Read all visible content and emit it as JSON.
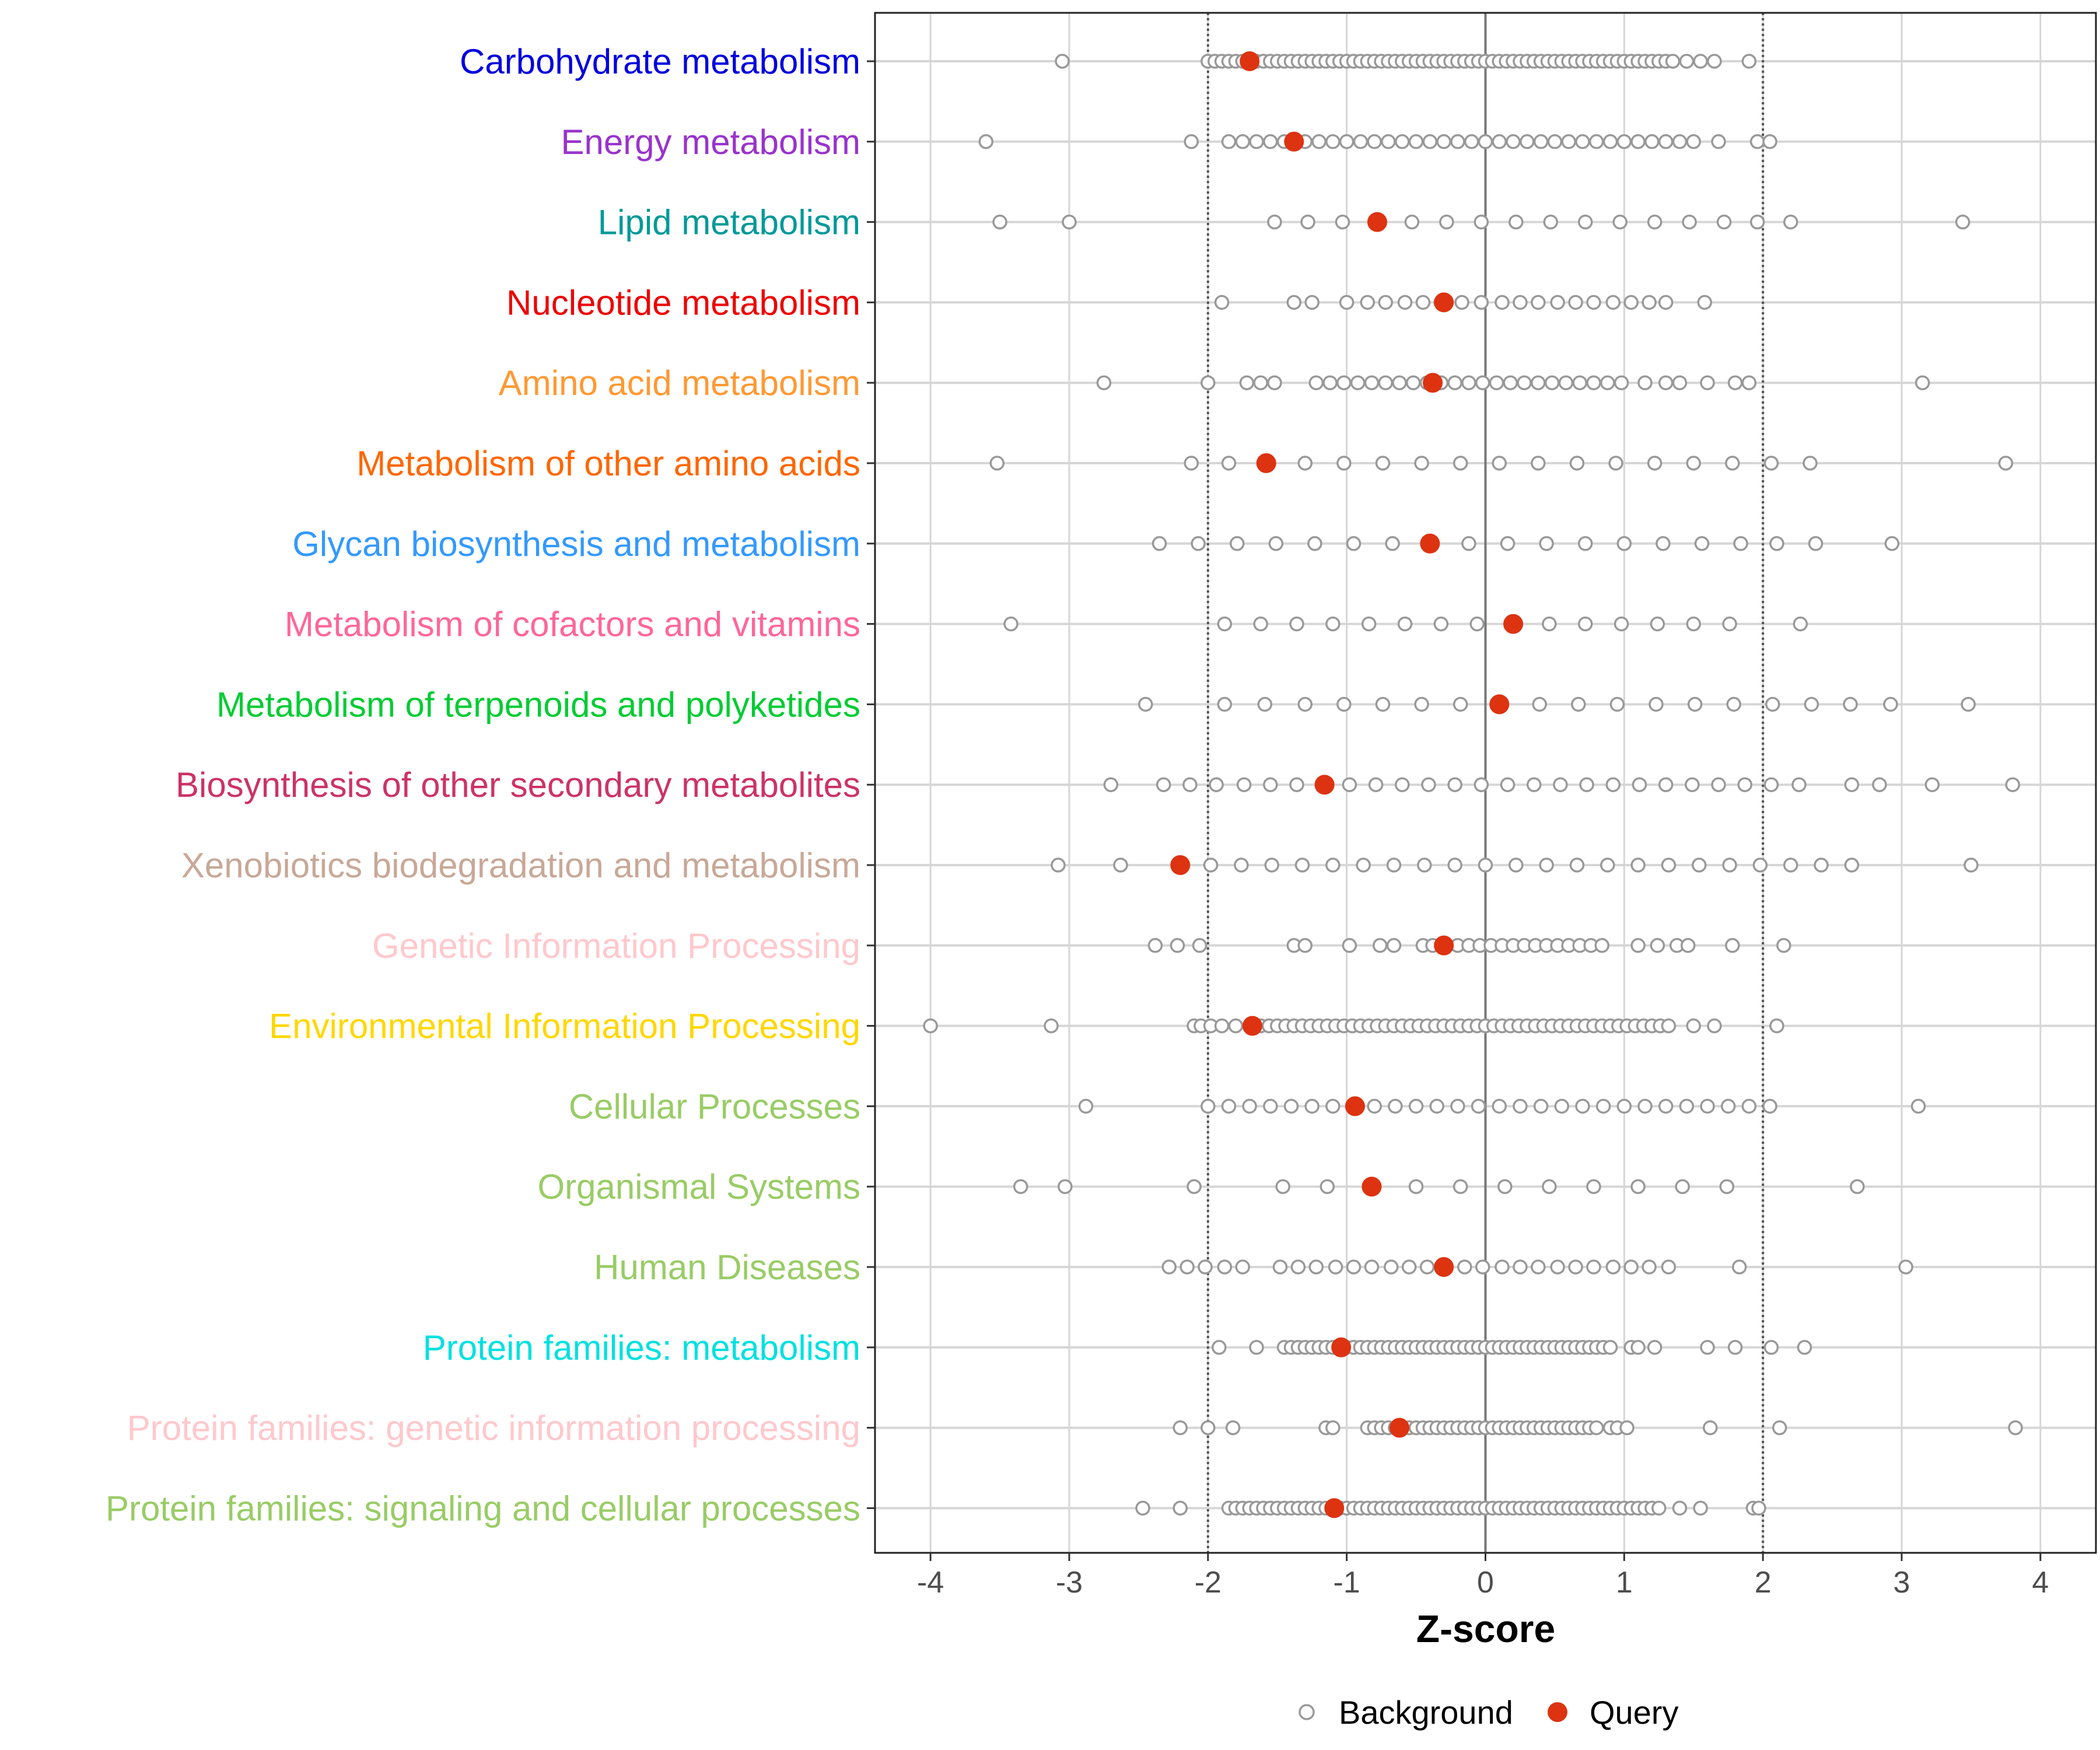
{
  "chart_data": {
    "type": "scatter",
    "xlabel": "Z-score",
    "xlim": [
      -4.4,
      4.4
    ],
    "x_ticks": [
      -4,
      -3,
      -2,
      -1,
      0,
      1,
      2,
      3,
      4
    ],
    "x_tick_labels": [
      "-4",
      "-3",
      "-2",
      "-1",
      "0",
      "1",
      "2",
      "3",
      "4"
    ],
    "threshold_lines": [
      -2,
      2
    ],
    "zero_line": 0,
    "legend": {
      "position": "bottom",
      "entries": [
        {
          "name": "Background",
          "style": "hollow",
          "color": "#9a9a9a"
        },
        {
          "name": "Query",
          "style": "filled",
          "color": "#dd3311"
        }
      ]
    },
    "categories": [
      {
        "label": "Carbohydrate metabolism",
        "color": "#0000dd",
        "query": -1.7,
        "background": [
          -3.05,
          -2.0,
          -1.95,
          -1.9,
          -1.85,
          -1.8,
          -1.75,
          -1.65,
          -1.6,
          -1.55,
          -1.5,
          -1.45,
          -1.4,
          -1.35,
          -1.3,
          -1.25,
          -1.2,
          -1.15,
          -1.1,
          -1.05,
          -1.0,
          -0.95,
          -0.9,
          -0.85,
          -0.8,
          -0.75,
          -0.7,
          -0.65,
          -0.6,
          -0.55,
          -0.5,
          -0.45,
          -0.4,
          -0.35,
          -0.3,
          -0.25,
          -0.2,
          -0.15,
          -0.1,
          -0.05,
          0.0,
          0.05,
          0.1,
          0.15,
          0.2,
          0.25,
          0.3,
          0.35,
          0.4,
          0.45,
          0.5,
          0.55,
          0.6,
          0.65,
          0.7,
          0.75,
          0.8,
          0.85,
          0.9,
          0.95,
          1.0,
          1.05,
          1.1,
          1.15,
          1.2,
          1.25,
          1.3,
          1.35,
          1.45,
          1.55,
          1.65,
          1.9
        ]
      },
      {
        "label": "Energy metabolism",
        "color": "#9933cc",
        "query": -1.38,
        "background": [
          -3.6,
          -2.12,
          -1.85,
          -1.75,
          -1.65,
          -1.55,
          -1.45,
          -1.3,
          -1.2,
          -1.1,
          -1.0,
          -0.9,
          -0.8,
          -0.7,
          -0.6,
          -0.5,
          -0.4,
          -0.3,
          -0.2,
          -0.1,
          0.0,
          0.1,
          0.2,
          0.3,
          0.4,
          0.5,
          0.6,
          0.7,
          0.8,
          0.9,
          1.0,
          1.1,
          1.2,
          1.3,
          1.4,
          1.5,
          1.68,
          1.96,
          2.05
        ]
      },
      {
        "label": "Lipid metabolism",
        "color": "#009999",
        "query": -0.78,
        "background": [
          -3.5,
          -3.0,
          -1.52,
          -1.28,
          -1.03,
          -0.53,
          -0.28,
          -0.03,
          0.22,
          0.47,
          0.72,
          0.97,
          1.22,
          1.47,
          1.72,
          1.96,
          2.2,
          3.44
        ]
      },
      {
        "label": "Nucleotide metabolism",
        "color": "#ee0000",
        "query": -0.3,
        "background": [
          -1.9,
          -1.38,
          -1.25,
          -1.0,
          -0.85,
          -0.72,
          -0.58,
          -0.45,
          -0.32,
          -0.17,
          -0.03,
          0.12,
          0.25,
          0.38,
          0.52,
          0.65,
          0.78,
          0.92,
          1.05,
          1.18,
          1.3,
          1.58
        ]
      },
      {
        "label": "Amino acid metabolism",
        "color": "#ff9933",
        "query": -0.38,
        "background": [
          -2.75,
          -2.0,
          -1.72,
          -1.62,
          -1.52,
          -1.22,
          -1.12,
          -1.02,
          -0.92,
          -0.82,
          -0.72,
          -0.62,
          -0.52,
          -0.42,
          -0.32,
          -0.22,
          -0.12,
          -0.02,
          0.08,
          0.18,
          0.28,
          0.38,
          0.48,
          0.58,
          0.68,
          0.78,
          0.88,
          0.98,
          1.15,
          1.3,
          1.4,
          1.6,
          1.8,
          1.9,
          3.15
        ]
      },
      {
        "label": "Metabolism of other amino acids",
        "color": "#ff6600",
        "query": -1.58,
        "background": [
          -3.52,
          -2.12,
          -1.85,
          -1.3,
          -1.02,
          -0.74,
          -0.46,
          -0.18,
          0.1,
          0.38,
          0.66,
          0.94,
          1.22,
          1.5,
          1.78,
          2.06,
          2.34,
          3.75
        ]
      },
      {
        "label": "Glycan biosynthesis and metabolism",
        "color": "#3399ff",
        "query": -0.4,
        "background": [
          -2.35,
          -2.07,
          -1.79,
          -1.51,
          -1.23,
          -0.95,
          -0.67,
          -0.12,
          0.16,
          0.44,
          0.72,
          1.0,
          1.28,
          1.56,
          1.84,
          2.1,
          2.38,
          2.93
        ]
      },
      {
        "label": "Metabolism of cofactors and vitamins",
        "color": "#ff6699",
        "query": 0.2,
        "background": [
          -3.42,
          -1.88,
          -1.62,
          -1.36,
          -1.1,
          -0.84,
          -0.58,
          -0.32,
          -0.06,
          0.46,
          0.72,
          0.98,
          1.24,
          1.5,
          1.76,
          2.27
        ]
      },
      {
        "label": "Metabolism of terpenoids and polyketides",
        "color": "#00cc33",
        "query": 0.1,
        "background": [
          -2.45,
          -1.88,
          -1.59,
          -1.3,
          -1.02,
          -0.74,
          -0.46,
          -0.18,
          0.39,
          0.67,
          0.95,
          1.23,
          1.51,
          1.79,
          2.07,
          2.35,
          2.63,
          2.92,
          3.48
        ]
      },
      {
        "label": "Biosynthesis of other secondary metabolites",
        "color": "#cc3366",
        "query": -1.16,
        "background": [
          -2.7,
          -2.32,
          -2.13,
          -1.94,
          -1.74,
          -1.55,
          -1.36,
          -0.98,
          -0.79,
          -0.6,
          -0.41,
          -0.22,
          -0.03,
          0.16,
          0.35,
          0.54,
          0.73,
          0.92,
          1.11,
          1.3,
          1.49,
          1.68,
          1.87,
          2.06,
          2.26,
          2.64,
          2.84,
          3.22,
          3.8
        ]
      },
      {
        "label": "Xenobiotics biodegradation and metabolism",
        "color": "#c8a898",
        "query": -2.2,
        "background": [
          -3.08,
          -2.63,
          -1.98,
          -1.76,
          -1.54,
          -1.32,
          -1.1,
          -0.88,
          -0.66,
          -0.44,
          -0.22,
          0.0,
          0.22,
          0.44,
          0.66,
          0.88,
          1.1,
          1.32,
          1.54,
          1.76,
          1.98,
          2.2,
          2.42,
          2.64,
          3.5
        ]
      },
      {
        "label": "Genetic Information Processing",
        "color": "#ffc8cc",
        "query": -0.3,
        "background": [
          -2.38,
          -2.22,
          -2.06,
          -1.38,
          -1.3,
          -0.98,
          -0.76,
          -0.66,
          -0.45,
          -0.38,
          -0.2,
          -0.12,
          -0.04,
          0.04,
          0.12,
          0.2,
          0.28,
          0.36,
          0.44,
          0.52,
          0.6,
          0.68,
          0.76,
          0.84,
          1.1,
          1.24,
          1.38,
          1.46,
          1.78,
          2.15
        ]
      },
      {
        "label": "Environmental Information Processing",
        "color": "#ffd700",
        "query": -1.68,
        "background": [
          -4.0,
          -3.13,
          -2.1,
          -2.05,
          -1.98,
          -1.9,
          -1.8,
          -1.7,
          -1.62,
          -1.56,
          -1.5,
          -1.44,
          -1.38,
          -1.32,
          -1.26,
          -1.2,
          -1.14,
          -1.08,
          -1.02,
          -0.96,
          -0.9,
          -0.84,
          -0.78,
          -0.72,
          -0.66,
          -0.6,
          -0.54,
          -0.48,
          -0.42,
          -0.36,
          -0.3,
          -0.24,
          -0.18,
          -0.12,
          -0.06,
          0.0,
          0.06,
          0.12,
          0.18,
          0.24,
          0.3,
          0.36,
          0.42,
          0.48,
          0.54,
          0.6,
          0.66,
          0.72,
          0.78,
          0.84,
          0.9,
          0.96,
          1.02,
          1.08,
          1.14,
          1.2,
          1.26,
          1.32,
          1.5,
          1.65,
          2.1
        ]
      },
      {
        "label": "Cellular Processes",
        "color": "#99cc66",
        "query": -0.94,
        "background": [
          -2.88,
          -2.0,
          -1.85,
          -1.7,
          -1.55,
          -1.4,
          -1.25,
          -1.1,
          -0.8,
          -0.65,
          -0.5,
          -0.35,
          -0.2,
          -0.05,
          0.1,
          0.25,
          0.4,
          0.55,
          0.7,
          0.85,
          1.0,
          1.15,
          1.3,
          1.45,
          1.6,
          1.75,
          1.9,
          2.05,
          3.12
        ]
      },
      {
        "label": "Organismal Systems",
        "color": "#99cc66",
        "query": -0.82,
        "background": [
          -3.35,
          -3.03,
          -2.1,
          -1.46,
          -1.14,
          -0.5,
          -0.18,
          0.14,
          0.46,
          0.78,
          1.1,
          1.42,
          1.74,
          2.68
        ]
      },
      {
        "label": "Human Diseases",
        "color": "#99cc66",
        "query": -0.3,
        "background": [
          -2.28,
          -2.15,
          -2.02,
          -1.88,
          -1.75,
          -1.48,
          -1.35,
          -1.22,
          -1.08,
          -0.95,
          -0.82,
          -0.68,
          -0.55,
          -0.42,
          -0.15,
          -0.02,
          0.12,
          0.25,
          0.38,
          0.52,
          0.65,
          0.78,
          0.92,
          1.05,
          1.18,
          1.32,
          1.83,
          3.03
        ]
      },
      {
        "label": "Protein families: metabolism",
        "color": "#00e0e0",
        "query": -1.04,
        "background": [
          -1.92,
          -1.65,
          -1.45,
          -1.4,
          -1.35,
          -1.3,
          -1.25,
          -1.2,
          -1.15,
          -1.1,
          -1.05,
          -1.0,
          -0.95,
          -0.9,
          -0.85,
          -0.8,
          -0.75,
          -0.7,
          -0.65,
          -0.6,
          -0.55,
          -0.5,
          -0.45,
          -0.4,
          -0.35,
          -0.3,
          -0.25,
          -0.2,
          -0.15,
          -0.1,
          -0.05,
          0.0,
          0.05,
          0.1,
          0.15,
          0.2,
          0.25,
          0.3,
          0.35,
          0.4,
          0.45,
          0.5,
          0.55,
          0.6,
          0.65,
          0.7,
          0.75,
          0.8,
          0.85,
          0.9,
          1.05,
          1.1,
          1.22,
          1.6,
          1.8,
          2.06,
          2.3
        ]
      },
      {
        "label": "Protein families: genetic information processing",
        "color": "#ffc8cc",
        "query": -0.62,
        "background": [
          -2.2,
          -2.0,
          -1.82,
          -1.15,
          -1.1,
          -0.85,
          -0.8,
          -0.75,
          -0.7,
          -0.65,
          -0.55,
          -0.5,
          -0.45,
          -0.4,
          -0.35,
          -0.3,
          -0.25,
          -0.2,
          -0.15,
          -0.1,
          -0.05,
          0.0,
          0.05,
          0.1,
          0.15,
          0.2,
          0.25,
          0.3,
          0.35,
          0.4,
          0.45,
          0.5,
          0.55,
          0.6,
          0.65,
          0.7,
          0.75,
          0.8,
          0.9,
          0.95,
          1.02,
          1.62,
          2.12,
          3.82
        ]
      },
      {
        "label": "Protein families: signaling and cellular processes",
        "color": "#99cc66",
        "query": -1.09,
        "background": [
          -2.47,
          -2.2,
          -1.85,
          -1.8,
          -1.75,
          -1.7,
          -1.65,
          -1.6,
          -1.55,
          -1.5,
          -1.45,
          -1.4,
          -1.35,
          -1.3,
          -1.25,
          -1.2,
          -1.15,
          -1.1,
          -1.05,
          -1.0,
          -0.95,
          -0.9,
          -0.85,
          -0.8,
          -0.75,
          -0.7,
          -0.65,
          -0.6,
          -0.55,
          -0.5,
          -0.45,
          -0.4,
          -0.35,
          -0.3,
          -0.25,
          -0.2,
          -0.15,
          -0.1,
          -0.05,
          0.0,
          0.05,
          0.1,
          0.15,
          0.2,
          0.25,
          0.3,
          0.35,
          0.4,
          0.45,
          0.5,
          0.55,
          0.6,
          0.65,
          0.7,
          0.75,
          0.8,
          0.85,
          0.9,
          0.95,
          1.0,
          1.05,
          1.1,
          1.15,
          1.2,
          1.25,
          1.4,
          1.55,
          1.93,
          1.97
        ]
      }
    ]
  }
}
